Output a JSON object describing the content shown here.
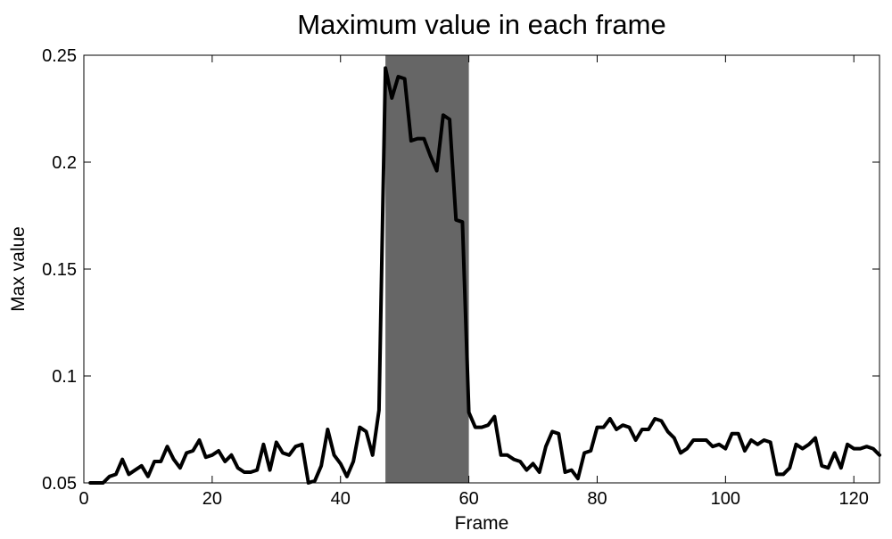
{
  "chart_data": {
    "type": "line",
    "title": "Maximum value in each frame",
    "xlabel": "Frame",
    "ylabel": "Max value",
    "xlim": [
      0,
      124
    ],
    "ylim": [
      0.05,
      0.25
    ],
    "xticks": [
      0,
      20,
      40,
      60,
      80,
      100,
      120
    ],
    "yticks": [
      0.05,
      0.1,
      0.15,
      0.2,
      0.25
    ],
    "xtick_labels": [
      "0",
      "20",
      "40",
      "60",
      "80",
      "100",
      "120"
    ],
    "ytick_labels": [
      "0.05",
      "0.1",
      "0.15",
      "0.2",
      "0.25"
    ],
    "grid": false,
    "highlight_region": {
      "x_start": 47,
      "x_end": 60,
      "color": "#666666"
    },
    "series": [
      {
        "line_color": "#000000",
        "x": [
          1,
          2,
          3,
          4,
          5,
          6,
          7,
          8,
          9,
          10,
          11,
          12,
          13,
          14,
          15,
          16,
          17,
          18,
          19,
          20,
          21,
          22,
          23,
          24,
          25,
          26,
          27,
          28,
          29,
          30,
          31,
          32,
          33,
          34,
          35,
          36,
          37,
          38,
          39,
          40,
          41,
          42,
          43,
          44,
          45,
          46,
          47,
          48,
          49,
          50,
          51,
          52,
          53,
          54,
          55,
          56,
          57,
          58,
          59,
          60,
          61,
          62,
          63,
          64,
          65,
          66,
          67,
          68,
          69,
          70,
          71,
          72,
          73,
          74,
          75,
          76,
          77,
          78,
          79,
          80,
          81,
          82,
          83,
          84,
          85,
          86,
          87,
          88,
          89,
          90,
          91,
          92,
          93,
          94,
          95,
          96,
          97,
          98,
          99,
          100,
          101,
          102,
          103,
          104,
          105,
          106,
          107,
          108,
          109,
          110,
          111,
          112,
          113,
          114,
          115,
          116,
          117,
          118,
          119,
          120,
          121,
          122,
          123,
          124
        ],
        "values": [
          0.05,
          0.05,
          0.05,
          0.053,
          0.054,
          0.061,
          0.054,
          0.056,
          0.058,
          0.053,
          0.06,
          0.06,
          0.067,
          0.061,
          0.057,
          0.064,
          0.065,
          0.07,
          0.062,
          0.063,
          0.065,
          0.06,
          0.063,
          0.057,
          0.055,
          0.055,
          0.056,
          0.068,
          0.056,
          0.069,
          0.064,
          0.063,
          0.067,
          0.068,
          0.05,
          0.051,
          0.058,
          0.075,
          0.063,
          0.059,
          0.053,
          0.06,
          0.076,
          0.074,
          0.063,
          0.084,
          0.244,
          0.23,
          0.24,
          0.239,
          0.21,
          0.211,
          0.211,
          0.203,
          0.196,
          0.222,
          0.22,
          0.173,
          0.172,
          0.083,
          0.076,
          0.076,
          0.077,
          0.081,
          0.063,
          0.063,
          0.061,
          0.06,
          0.056,
          0.059,
          0.055,
          0.067,
          0.074,
          0.073,
          0.055,
          0.056,
          0.052,
          0.064,
          0.065,
          0.076,
          0.076,
          0.08,
          0.075,
          0.077,
          0.076,
          0.07,
          0.075,
          0.075,
          0.08,
          0.079,
          0.074,
          0.071,
          0.064,
          0.066,
          0.07,
          0.07,
          0.07,
          0.067,
          0.068,
          0.066,
          0.073,
          0.073,
          0.065,
          0.07,
          0.068,
          0.07,
          0.069,
          0.054,
          0.054,
          0.057,
          0.068,
          0.066,
          0.068,
          0.071,
          0.058,
          0.057,
          0.064,
          0.057,
          0.068,
          0.066,
          0.066,
          0.067,
          0.066,
          0.063
        ]
      }
    ]
  }
}
